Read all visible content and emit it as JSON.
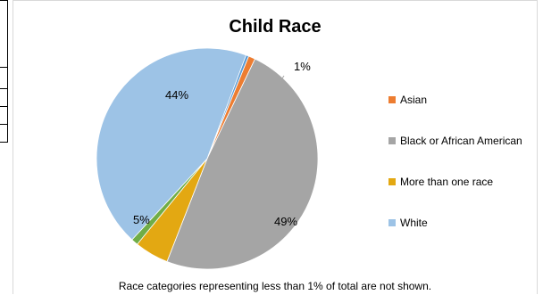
{
  "chart_data": {
    "type": "pie",
    "title": "Child Race",
    "note": "Race categories representing less than 1% of total are not shown.",
    "slices": [
      {
        "name": "Asian",
        "value": 1,
        "color": "#ED7D31",
        "label": "1%"
      },
      {
        "name": "Black or African American",
        "value": 49,
        "color": "#A5A5A5",
        "label": "49%"
      },
      {
        "name": "More than one race",
        "value": 5,
        "color": "#E3A812",
        "label": "5%"
      },
      {
        "name": "",
        "value": 1,
        "color": "#70AD47",
        "label": ""
      },
      {
        "name": "White",
        "value": 44,
        "color": "#9DC3E6",
        "label": "44%"
      },
      {
        "name": "",
        "value": 0.4,
        "color": "#5B9BD5",
        "label": ""
      }
    ],
    "legend": [
      {
        "name": "Asian",
        "color": "#ED7D31"
      },
      {
        "name": "Black or African American",
        "color": "#A5A5A5"
      },
      {
        "name": "More than one race",
        "color": "#E3A812"
      },
      {
        "name": "White",
        "color": "#9DC3E6"
      }
    ]
  }
}
